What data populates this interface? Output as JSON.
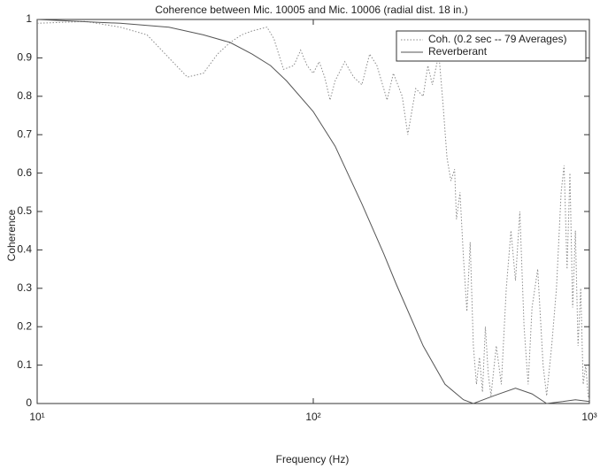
{
  "chart_data": {
    "type": "line",
    "title": "Coherence between Mic. 10005 and Mic. 10006 (radial dist. 18 in.)",
    "x_label": "Frequency (Hz)",
    "y_label": "Coherence",
    "xscale": "log",
    "xlim": [
      10,
      1000
    ],
    "ylim": [
      0,
      1
    ],
    "xticks": [
      {
        "value": 10,
        "label": "10¹"
      },
      {
        "value": 100,
        "label": "10²"
      },
      {
        "value": 1000,
        "label": "10³"
      }
    ],
    "yticks": [
      0,
      0.1,
      0.2,
      0.3,
      0.4,
      0.5,
      0.6,
      0.7,
      0.8,
      0.9,
      1
    ],
    "grid": false,
    "legend": "upper right",
    "series": [
      {
        "name": "Coh. (0.2 sec -- 79 Averages)",
        "color": "#8a8a8a",
        "linestyle": "dotted",
        "x": [
          10,
          15,
          20,
          25,
          30,
          35,
          40,
          45,
          50,
          55,
          60,
          68,
          72,
          78,
          85,
          90,
          95,
          100,
          105,
          110,
          115,
          120,
          130,
          140,
          150,
          160,
          170,
          180,
          185,
          195,
          210,
          220,
          235,
          250,
          260,
          270,
          285,
          295,
          305,
          315,
          325,
          330,
          340,
          350,
          360,
          370,
          380,
          390,
          400,
          410,
          420,
          430,
          440,
          460,
          480,
          500,
          520,
          540,
          560,
          580,
          600,
          620,
          650,
          680,
          700,
          730,
          760,
          790,
          810,
          830,
          850,
          870,
          890,
          910,
          930,
          950,
          970,
          990,
          1000
        ],
        "values": [
          0.99,
          0.995,
          0.98,
          0.96,
          0.9,
          0.85,
          0.86,
          0.91,
          0.94,
          0.96,
          0.97,
          0.98,
          0.95,
          0.87,
          0.88,
          0.92,
          0.88,
          0.86,
          0.89,
          0.85,
          0.79,
          0.84,
          0.89,
          0.85,
          0.83,
          0.91,
          0.88,
          0.82,
          0.79,
          0.86,
          0.8,
          0.7,
          0.82,
          0.8,
          0.88,
          0.83,
          0.91,
          0.78,
          0.64,
          0.58,
          0.61,
          0.48,
          0.55,
          0.38,
          0.24,
          0.42,
          0.15,
          0.05,
          0.12,
          0.03,
          0.2,
          0.08,
          0.02,
          0.15,
          0.05,
          0.3,
          0.45,
          0.32,
          0.5,
          0.2,
          0.05,
          0.25,
          0.35,
          0.1,
          0.02,
          0.15,
          0.3,
          0.55,
          0.62,
          0.35,
          0.6,
          0.25,
          0.45,
          0.15,
          0.3,
          0.05,
          0.1,
          0.02,
          0.01
        ]
      },
      {
        "name": "Reverberant",
        "color": "#555555",
        "linestyle": "solid",
        "x": [
          10,
          20,
          30,
          40,
          50,
          60,
          70,
          80,
          100,
          120,
          150,
          180,
          200,
          250,
          300,
          350,
          380,
          450,
          540,
          620,
          700,
          800,
          890,
          1000
        ],
        "values": [
          1,
          0.99,
          0.98,
          0.96,
          0.94,
          0.91,
          0.88,
          0.84,
          0.76,
          0.67,
          0.52,
          0.39,
          0.31,
          0.15,
          0.05,
          0.01,
          0,
          0.02,
          0.04,
          0.025,
          0,
          0.005,
          0.01,
          0.005
        ]
      }
    ]
  }
}
